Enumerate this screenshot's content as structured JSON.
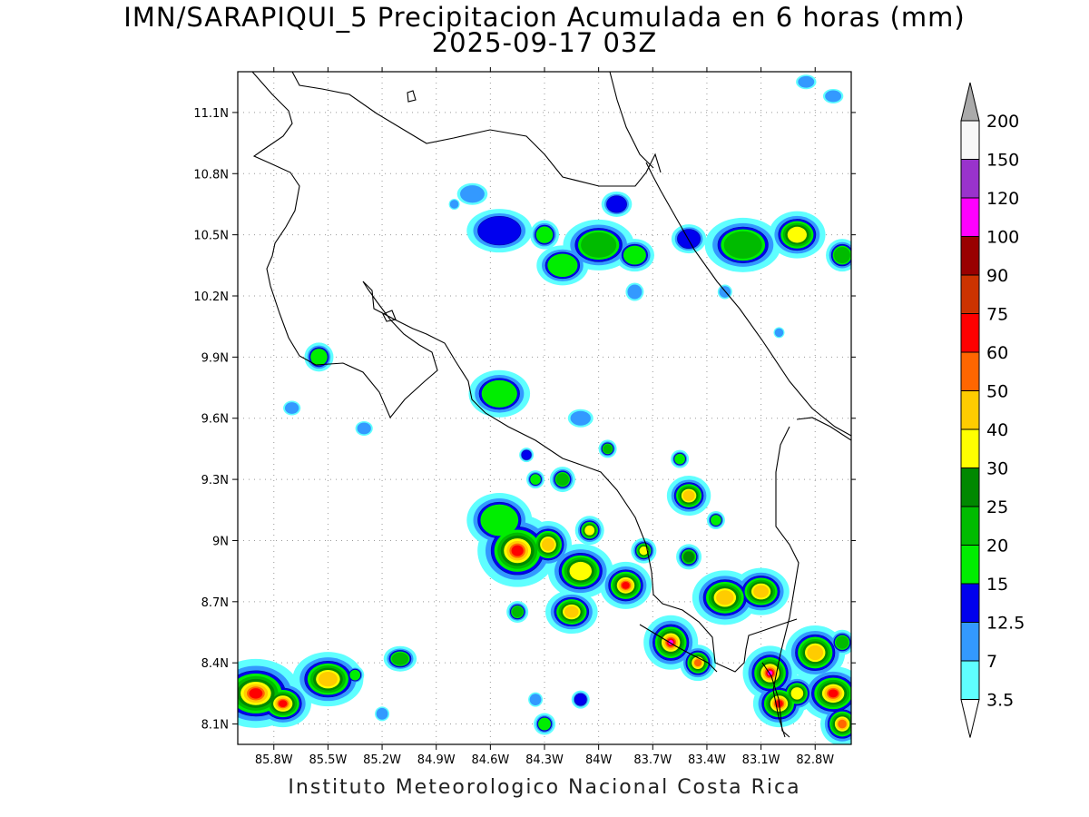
{
  "title": {
    "line1": "IMN/SARAPIQUI_5 Precipitacion Acumulada en 6 horas (mm)",
    "line2": "2025-09-17 03Z"
  },
  "credit": "Instituto Meteorologico Nacional Costa Rica",
  "map": {
    "lon_range": [
      -86.0,
      -82.6
    ],
    "lat_range": [
      8.0,
      11.3
    ],
    "lon_ticks": [
      "85.8W",
      "85.5W",
      "85.2W",
      "84.9W",
      "84.6W",
      "84.3W",
      "84W",
      "83.7W",
      "83.4W",
      "83.1W",
      "82.8W"
    ],
    "lon_values": [
      -85.8,
      -85.5,
      -85.2,
      -84.9,
      -84.6,
      -84.3,
      -84.0,
      -83.7,
      -83.4,
      -83.1,
      -82.8
    ],
    "lat_ticks": [
      "8.1N",
      "8.4N",
      "8.7N",
      "9N",
      "9.3N",
      "9.6N",
      "9.9N",
      "10.2N",
      "10.5N",
      "10.8N",
      "11.1N"
    ],
    "lat_values": [
      8.1,
      8.4,
      8.7,
      9.0,
      9.3,
      9.6,
      9.9,
      10.2,
      10.5,
      10.8,
      11.1
    ],
    "grid": "dotted"
  },
  "colorbar": {
    "labels": [
      "3.5",
      "7",
      "12.5",
      "15",
      "20",
      "25",
      "30",
      "40",
      "50",
      "60",
      "75",
      "90",
      "100",
      "120",
      "150",
      "200"
    ],
    "colors": [
      "#5fffff",
      "#3399ff",
      "#0000ee",
      "#00ee00",
      "#00bb00",
      "#008800",
      "#ffff00",
      "#ffcc00",
      "#ff6600",
      "#ff0000",
      "#cc3300",
      "#990000",
      "#ff00ff",
      "#9933cc",
      "#f8f8f8"
    ],
    "under_color": "#ffffff",
    "over_color": "#aaaaaa"
  },
  "precip_colors": {
    "c35": "#5fffff",
    "c7": "#3399ff",
    "c125": "#0000ee",
    "c15": "#00ee00",
    "c20": "#00bb00",
    "c25": "#008800",
    "c30": "#ffff00",
    "c40": "#ffcc00",
    "c50": "#ff6600",
    "c60": "#ff0000",
    "c100": "#ff00ff"
  }
}
